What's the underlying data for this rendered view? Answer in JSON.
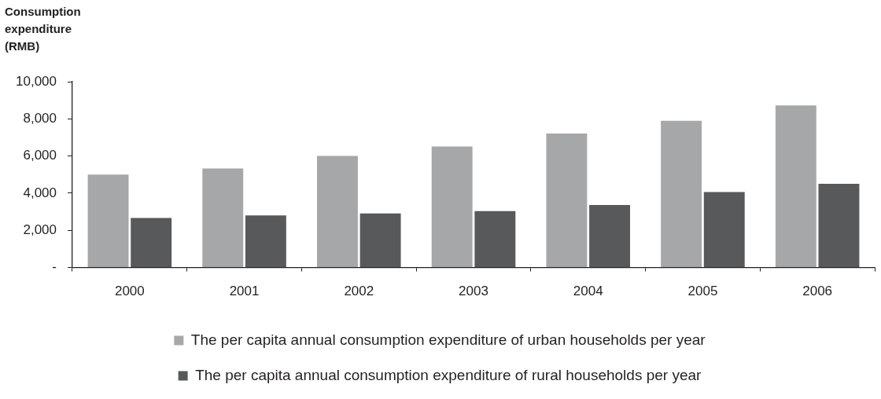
{
  "chart_data": {
    "type": "bar",
    "ylabel": "Consumption expenditure (RMB)",
    "categories": [
      "2000",
      "2001",
      "2002",
      "2003",
      "2004",
      "2005",
      "2006"
    ],
    "series": [
      {
        "name": "The per capita annual consumption expenditure of urban households per year",
        "color": "#a6a7a9",
        "values": [
          5000,
          5330,
          6010,
          6510,
          7210,
          7900,
          8720
        ]
      },
      {
        "name": "The per capita annual consumption expenditure of rural households per year",
        "color": "#58595b",
        "values": [
          2670,
          2800,
          2910,
          3040,
          3360,
          4060,
          4510
        ]
      }
    ],
    "ylim": [
      0,
      10000
    ],
    "yticks": [
      {
        "value": 0,
        "label": "-"
      },
      {
        "value": 2000,
        "label": "2,000"
      },
      {
        "value": 4000,
        "label": "4,000"
      },
      {
        "value": 6000,
        "label": "6,000"
      },
      {
        "value": 8000,
        "label": "8,000"
      },
      {
        "value": 10000,
        "label": "10,000"
      }
    ],
    "grid": false,
    "legend": "bottom"
  }
}
